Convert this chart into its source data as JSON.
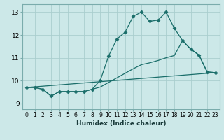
{
  "bg_color": "#cce8e8",
  "grid_color": "#aacece",
  "line_color": "#1a6e6a",
  "marker": "D",
  "marker_size": 2.5,
  "xlabel": "Humidex (Indice chaleur)",
  "xlim": [
    -0.5,
    23.5
  ],
  "ylim": [
    8.75,
    13.35
  ],
  "yticks": [
    9,
    10,
    11,
    12,
    13
  ],
  "xticks": [
    0,
    1,
    2,
    3,
    4,
    5,
    6,
    7,
    8,
    9,
    10,
    11,
    12,
    13,
    14,
    15,
    16,
    17,
    18,
    19,
    20,
    21,
    22,
    23
  ],
  "curve1_x": [
    0,
    1,
    2,
    3,
    4,
    5,
    6,
    7,
    8,
    9,
    10,
    11,
    12,
    13,
    14,
    15,
    16,
    17,
    18,
    19,
    20,
    21,
    22,
    23
  ],
  "curve1_y": [
    9.7,
    9.7,
    9.62,
    9.32,
    9.52,
    9.52,
    9.52,
    9.52,
    9.62,
    10.02,
    11.08,
    11.82,
    12.12,
    12.82,
    13.0,
    12.6,
    12.65,
    13.0,
    12.3,
    11.75,
    11.38,
    11.12,
    10.38,
    10.35
  ],
  "curve2_x": [
    0,
    1,
    2,
    3,
    4,
    5,
    6,
    7,
    8,
    9,
    10,
    11,
    12,
    13,
    14,
    15,
    16,
    17,
    18,
    19,
    20,
    21,
    22,
    23
  ],
  "curve2_y": [
    9.7,
    9.7,
    9.62,
    9.32,
    9.52,
    9.52,
    9.52,
    9.52,
    9.62,
    9.72,
    9.92,
    10.12,
    10.32,
    10.52,
    10.7,
    10.78,
    10.88,
    11.0,
    11.1,
    11.75,
    11.38,
    11.12,
    10.38,
    10.35
  ],
  "curve3_x": [
    0,
    23
  ],
  "curve3_y": [
    9.7,
    10.35
  ]
}
